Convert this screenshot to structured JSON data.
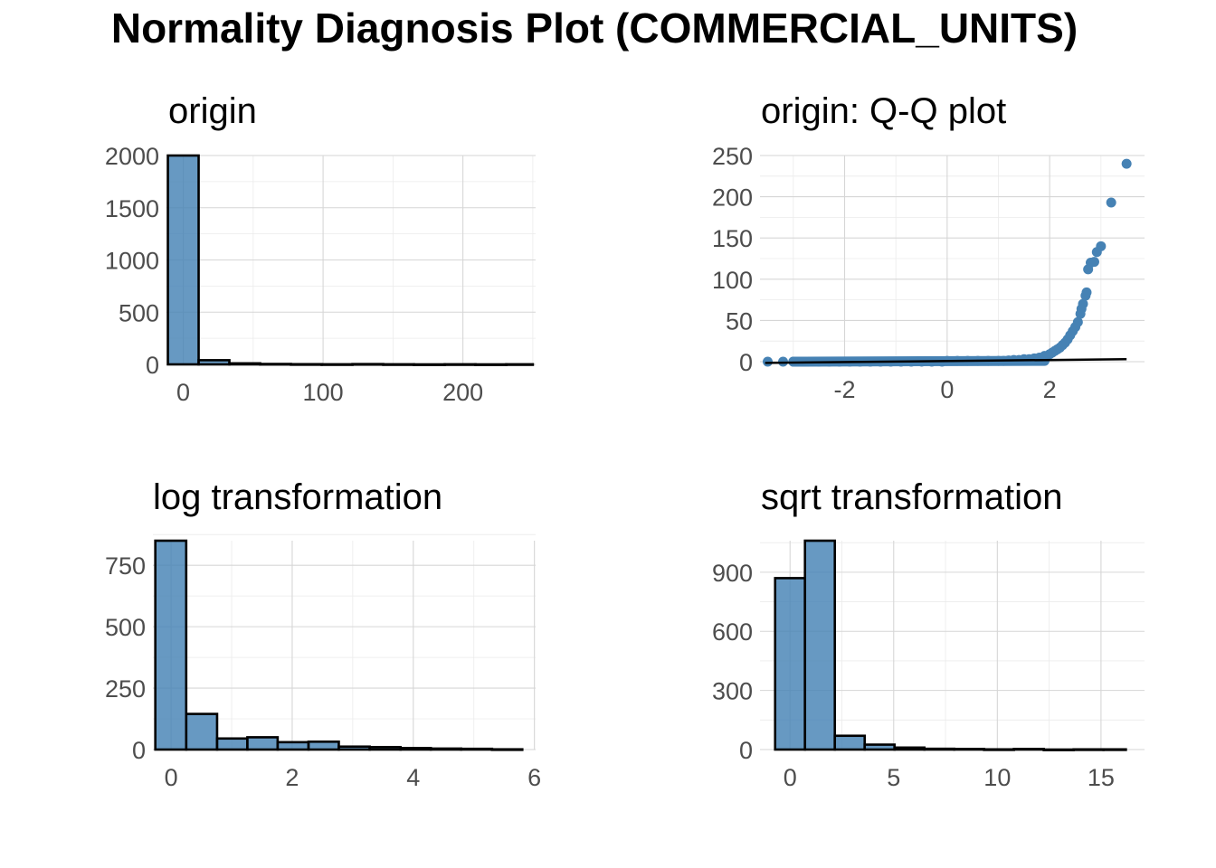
{
  "title": "Normality Diagnosis Plot (COMMERCIAL_UNITS)",
  "colors": {
    "fill": "#4682b4",
    "outline": "#000000",
    "grid": "#d6d6d6",
    "tick_text": "#4d4d4d"
  },
  "chart_data": [
    {
      "id": "origin",
      "type": "bar",
      "title": "origin",
      "xlim": [
        -12,
        252
      ],
      "ylim": [
        0,
        2000
      ],
      "x_ticks": [
        0,
        100,
        200
      ],
      "y_ticks": [
        0,
        500,
        1000,
        1500,
        2000
      ],
      "bins": [
        {
          "x0": -11,
          "x1": 11,
          "value": 2000
        },
        {
          "x0": 11,
          "x1": 33,
          "value": 40
        },
        {
          "x0": 33,
          "x1": 55,
          "value": 10
        },
        {
          "x0": 55,
          "x1": 77,
          "value": 4
        },
        {
          "x0": 77,
          "x1": 99,
          "value": 2
        },
        {
          "x0": 99,
          "x1": 121,
          "value": 1
        },
        {
          "x0": 121,
          "x1": 143,
          "value": 3
        },
        {
          "x0": 143,
          "x1": 165,
          "value": 1
        },
        {
          "x0": 165,
          "x1": 187,
          "value": 0
        },
        {
          "x0": 187,
          "x1": 209,
          "value": 1
        },
        {
          "x0": 209,
          "x1": 231,
          "value": 0
        },
        {
          "x0": 231,
          "x1": 250,
          "value": 1
        }
      ]
    },
    {
      "id": "qq",
      "type": "scatter",
      "title": "origin: Q-Q plot",
      "xlim": [
        -3.65,
        3.85
      ],
      "ylim": [
        0,
        250
      ],
      "x_ticks": [
        -2,
        0,
        2
      ],
      "y_ticks": [
        0,
        50,
        100,
        150,
        200,
        250
      ],
      "line": {
        "x0": -3.55,
        "y0": -1.5,
        "x1": 3.5,
        "y1": 3
      },
      "points": [
        [
          -3.5,
          0
        ],
        [
          -3.2,
          0
        ],
        [
          -3.0,
          0
        ],
        [
          -2.85,
          0
        ],
        [
          -2.7,
          0
        ],
        [
          -2.5,
          0
        ],
        [
          -2.3,
          0
        ],
        [
          -2.1,
          0
        ],
        [
          -1.9,
          0
        ],
        [
          -1.7,
          0
        ],
        [
          -1.5,
          0
        ],
        [
          -1.3,
          0
        ],
        [
          -1.1,
          0
        ],
        [
          -0.9,
          0
        ],
        [
          -0.7,
          0
        ],
        [
          -0.5,
          0
        ],
        [
          -0.3,
          0
        ],
        [
          -0.1,
          0
        ],
        [
          0.0,
          1
        ],
        [
          0.2,
          1
        ],
        [
          0.4,
          1
        ],
        [
          0.6,
          1
        ],
        [
          0.8,
          1
        ],
        [
          1.0,
          1
        ],
        [
          1.1,
          1
        ],
        [
          1.2,
          1.5
        ],
        [
          1.3,
          2
        ],
        [
          1.4,
          2
        ],
        [
          1.5,
          3
        ],
        [
          1.6,
          3
        ],
        [
          1.7,
          4
        ],
        [
          1.8,
          5
        ],
        [
          1.9,
          7
        ],
        [
          2.0,
          9
        ],
        [
          2.05,
          11
        ],
        [
          2.1,
          13
        ],
        [
          2.15,
          15
        ],
        [
          2.2,
          17
        ],
        [
          2.25,
          20
        ],
        [
          2.3,
          23
        ],
        [
          2.35,
          27
        ],
        [
          2.4,
          32
        ],
        [
          2.45,
          37
        ],
        [
          2.5,
          42
        ],
        [
          2.55,
          48
        ],
        [
          2.6,
          58
        ],
        [
          2.62,
          64
        ],
        [
          2.65,
          70
        ],
        [
          2.7,
          80
        ],
        [
          2.72,
          84
        ],
        [
          2.75,
          112
        ],
        [
          2.8,
          120
        ],
        [
          2.87,
          121
        ],
        [
          2.92,
          133
        ],
        [
          3.0,
          140
        ],
        [
          3.2,
          193
        ],
        [
          3.5,
          240
        ]
      ]
    },
    {
      "id": "log",
      "type": "bar",
      "title": "log transformation",
      "xlim": [
        -0.3,
        6.02
      ],
      "ylim": [
        0,
        850
      ],
      "x_ticks": [
        0,
        2,
        4,
        6
      ],
      "y_ticks": [
        0,
        250,
        500,
        750
      ],
      "bins": [
        {
          "x0": -0.26,
          "x1": 0.25,
          "value": 850
        },
        {
          "x0": 0.25,
          "x1": 0.76,
          "value": 145
        },
        {
          "x0": 0.76,
          "x1": 1.26,
          "value": 45
        },
        {
          "x0": 1.26,
          "x1": 1.76,
          "value": 50
        },
        {
          "x0": 1.76,
          "x1": 2.27,
          "value": 30
        },
        {
          "x0": 2.27,
          "x1": 2.77,
          "value": 32
        },
        {
          "x0": 2.77,
          "x1": 3.28,
          "value": 12
        },
        {
          "x0": 3.28,
          "x1": 3.79,
          "value": 10
        },
        {
          "x0": 3.79,
          "x1": 4.29,
          "value": 6
        },
        {
          "x0": 4.29,
          "x1": 4.79,
          "value": 4
        },
        {
          "x0": 4.79,
          "x1": 5.3,
          "value": 3
        },
        {
          "x0": 5.3,
          "x1": 5.8,
          "value": 1
        }
      ]
    },
    {
      "id": "sqrt",
      "type": "bar",
      "title": "sqrt transformation",
      "xlim": [
        -1.45,
        17.1
      ],
      "ylim": [
        0,
        1060
      ],
      "x_ticks": [
        0,
        5,
        10,
        15
      ],
      "y_ticks": [
        0,
        300,
        600,
        900
      ],
      "bins": [
        {
          "x0": -0.72,
          "x1": 0.72,
          "value": 870
        },
        {
          "x0": 0.72,
          "x1": 2.16,
          "value": 1060
        },
        {
          "x0": 2.16,
          "x1": 3.6,
          "value": 70
        },
        {
          "x0": 3.6,
          "x1": 5.04,
          "value": 25
        },
        {
          "x0": 5.04,
          "x1": 6.48,
          "value": 10
        },
        {
          "x0": 6.48,
          "x1": 7.92,
          "value": 4
        },
        {
          "x0": 7.92,
          "x1": 9.36,
          "value": 3
        },
        {
          "x0": 9.36,
          "x1": 10.8,
          "value": 1
        },
        {
          "x0": 10.8,
          "x1": 12.24,
          "value": 3
        },
        {
          "x0": 12.24,
          "x1": 13.68,
          "value": 0
        },
        {
          "x0": 13.68,
          "x1": 15.12,
          "value": 1
        },
        {
          "x0": 15.12,
          "x1": 16.2,
          "value": 1
        }
      ]
    }
  ]
}
